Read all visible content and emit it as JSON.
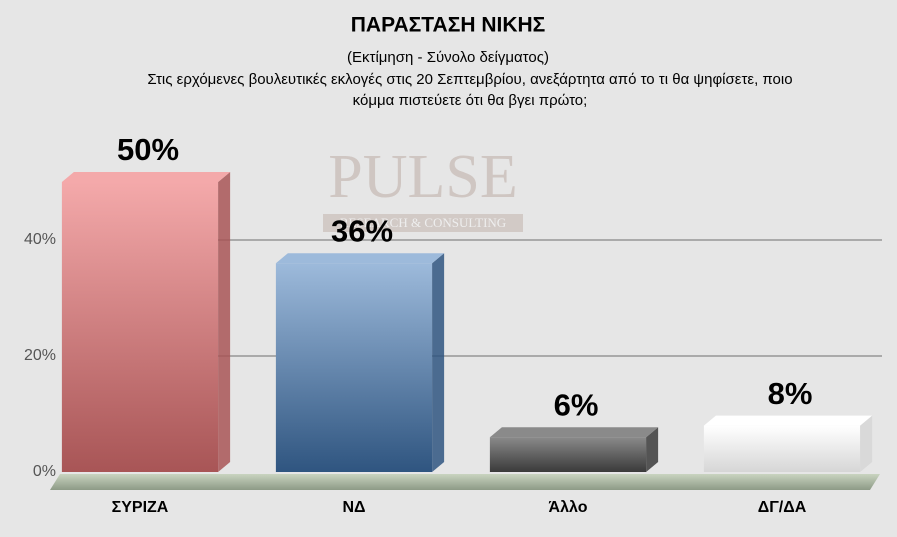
{
  "chart_data": {
    "type": "bar3d",
    "title": "ΠΑΡΑΣΤΑΣΗ ΝΙΚΗΣ",
    "subtitle": "(Εκτίμηση - Σύνολο δείγματος)",
    "question": [
      "Στις ερχόμενες βουλευτικές εκλογές στις 20 Σεπτεμβρίου, ανεξάρτητα από το τι θα ψηφίσετε, ποιο",
      "κόμμα πιστεύετε ότι θα βγει πρώτο;"
    ],
    "watermark": {
      "brand": "PULSE",
      "tagline": "RESEARCH & CONSULTING"
    },
    "categories": [
      "ΣΥΡΙΖΑ",
      "ΝΔ",
      "Άλλο",
      "ΔΓ/ΔΑ"
    ],
    "values": [
      50,
      36,
      6,
      8
    ],
    "value_labels": [
      "50%",
      "36%",
      "6%",
      "8%"
    ],
    "colors": [
      [
        "#f4a9aa",
        "#a85556"
      ],
      [
        "#9dbadb",
        "#2f5580"
      ],
      [
        "#8a8a8a",
        "#3a3a3a"
      ],
      [
        "#ffffff",
        "#d6d6d6"
      ]
    ],
    "ylim": [
      0,
      50
    ],
    "yticks": [
      {
        "value": 0,
        "label": "0%"
      },
      {
        "value": 20,
        "label": "20%"
      },
      {
        "value": 40,
        "label": "40%"
      }
    ],
    "grid": true
  }
}
